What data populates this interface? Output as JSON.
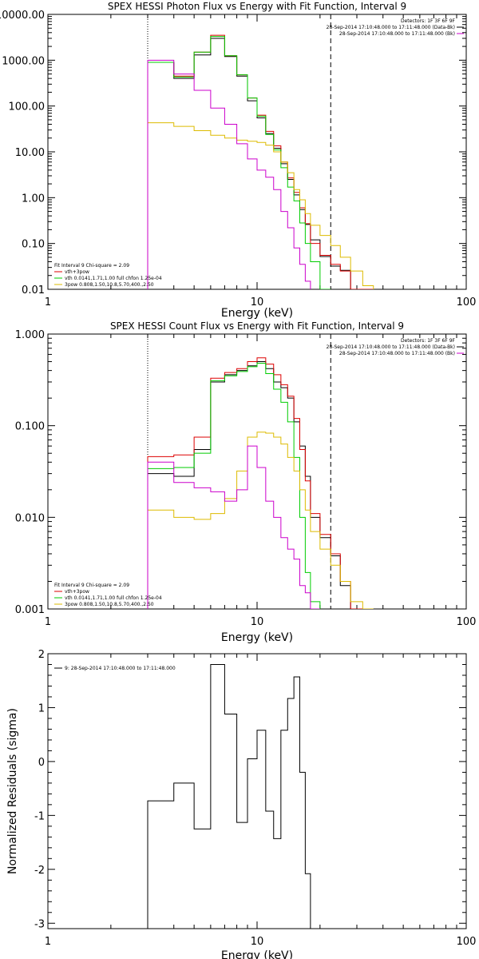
{
  "chart_data": [
    {
      "type": "line",
      "title": "SPEX HESSI Photon Flux vs Energy with Fit Function, Interval 9",
      "xlabel": "Energy (keV)",
      "ylabel": "",
      "xscale": "log",
      "yscale": "log",
      "xlim": [
        1,
        100
      ],
      "ylim": [
        0.01,
        10000
      ],
      "x_ticks": [
        1,
        10,
        100
      ],
      "x_tick_labels": [
        "1",
        "10",
        "100"
      ],
      "y_ticks": [
        0.01,
        0.1,
        1,
        10,
        100,
        1000,
        10000
      ],
      "y_tick_labels": [
        "0.01",
        "0.10",
        "1.00",
        "10.00",
        "100.00",
        "1000.00",
        "10000.00"
      ],
      "legend_right": {
        "placement": "top-right",
        "lines": [
          {
            "text": "Detectors: 1F 3F 6F 9F",
            "color": ""
          },
          {
            "text": "28-Sep-2014 17:10:48.000 to 17:11:48.000 (Data-Bk)",
            "color": "#000000"
          },
          {
            "text": "28-Sep-2014 17:10:48.000 to 17:11:48.000 (Bk)",
            "color": "#cc00cc"
          }
        ]
      },
      "legend_left": {
        "placement": "bottom-left",
        "lines": [
          {
            "text": "Fit Interval 9   Chi-square = 2.09",
            "color": ""
          },
          {
            "text": "vth+3pow",
            "color": "#dd0000"
          },
          {
            "text": "vth 0.0141,1.71,1.00  full chfon 1.25e-04",
            "color": "#00cc00"
          },
          {
            "text": "3pow 0.808,1.50,10.8,5.70,400.,2.50",
            "color": "#ddbb00"
          }
        ]
      },
      "vlines": [
        {
          "x": 3.0,
          "style": "dotted",
          "color": "#000000"
        },
        {
          "x": 22.5,
          "style": "dashed",
          "color": "#000000"
        }
      ],
      "edges": [
        3.0,
        4.0,
        5.0,
        6.0,
        7.0,
        8.0,
        9.0,
        10.0,
        11.0,
        12.0,
        13.0,
        14.0,
        15.0,
        16.0,
        17.0,
        18.0,
        20.0,
        22.5,
        25.0,
        28.0,
        32.0,
        36.0
      ],
      "series": [
        {
          "name": "Data-Bk",
          "color": "#000000",
          "values": [
            900,
            400,
            1300,
            3000,
            1200,
            450,
            130,
            55,
            25,
            12,
            5.5,
            2.5,
            1.15,
            0.55,
            0.26,
            0.12,
            0.052,
            0.032,
            0.026,
            0.006,
            0.006
          ]
        },
        {
          "name": "vth+3pow",
          "color": "#dd0000",
          "values": [
            900,
            450,
            1500,
            3500,
            1250,
            480,
            150,
            63,
            28,
            13.5,
            6.0,
            2.7,
            1.3,
            0.6,
            0.27,
            0.1,
            0.055,
            0.035,
            0.025,
            0.01,
            0.005
          ]
        },
        {
          "name": "vth",
          "color": "#00cc00",
          "values": [
            900,
            430,
            1500,
            3300,
            1250,
            480,
            150,
            60,
            24,
            11,
            4.5,
            1.7,
            0.85,
            0.28,
            0.1,
            0.04,
            0.01
          ]
        },
        {
          "name": "3pow",
          "color": "#ddbb00",
          "values": [
            43,
            36,
            29,
            23,
            20,
            18,
            17,
            16,
            14,
            10,
            6.0,
            3.5,
            1.5,
            0.9,
            0.45,
            0.25,
            0.15,
            0.09,
            0.05,
            0.025,
            0.012
          ]
        },
        {
          "name": "Bk",
          "color": "#cc00cc",
          "values": [
            1000,
            500,
            220,
            90,
            40,
            15,
            7.0,
            4.0,
            2.8,
            1.5,
            0.5,
            0.22,
            0.08,
            0.035,
            0.015
          ]
        }
      ]
    },
    {
      "type": "line",
      "title": "SPEX HESSI Count Flux vs Energy with Fit Function, Interval 9",
      "xlabel": "Energy (keV)",
      "ylabel": "",
      "xscale": "log",
      "yscale": "log",
      "xlim": [
        1,
        100
      ],
      "ylim": [
        0.001,
        1
      ],
      "x_ticks": [
        1,
        10,
        100
      ],
      "x_tick_labels": [
        "1",
        "10",
        "100"
      ],
      "y_ticks": [
        0.001,
        0.01,
        0.1,
        1
      ],
      "y_tick_labels": [
        "0.001",
        "0.010",
        "0.100",
        "1.000"
      ],
      "legend_right": {
        "placement": "top-right",
        "lines": [
          {
            "text": "Detectors: 1F 3F 6F 9F",
            "color": ""
          },
          {
            "text": "28-Sep-2014 17:10:48.000 to 17:11:48.000 (Data-Bk)",
            "color": "#000000"
          },
          {
            "text": "28-Sep-2014 17:10:48.000 to 17:11:48.000 (Bk)",
            "color": "#cc00cc"
          }
        ]
      },
      "legend_left": {
        "placement": "bottom-left",
        "lines": [
          {
            "text": "Fit Interval 9   Chi-square = 2.09",
            "color": ""
          },
          {
            "text": "vth+3pow",
            "color": "#dd0000"
          },
          {
            "text": "vth 0.0141,1.71,1.00  full chfon 1.25e-04",
            "color": "#00cc00"
          },
          {
            "text": "3pow 0.808,1.50,10.8,5.70,400.,2.50",
            "color": "#ddbb00"
          }
        ]
      },
      "vlines": [
        {
          "x": 3.0,
          "style": "dotted",
          "color": "#000000"
        },
        {
          "x": 22.5,
          "style": "dashed",
          "color": "#000000"
        }
      ],
      "edges": [
        3.0,
        4.0,
        5.0,
        6.0,
        7.0,
        8.0,
        9.0,
        10.0,
        11.0,
        12.0,
        13.0,
        14.0,
        15.0,
        16.0,
        17.0,
        18.0,
        20.0,
        22.5,
        25.0,
        28.0,
        32.0,
        36.0
      ],
      "series": [
        {
          "name": "Data-Bk",
          "color": "#000000",
          "values": [
            0.03,
            0.028,
            0.055,
            0.3,
            0.36,
            0.4,
            0.45,
            0.5,
            0.42,
            0.3,
            0.26,
            0.2,
            0.11,
            0.06,
            0.028,
            0.01,
            0.006,
            0.0038,
            0.0018,
            0.001
          ]
        },
        {
          "name": "vth+3pow",
          "color": "#dd0000",
          "values": [
            0.046,
            0.048,
            0.075,
            0.33,
            0.38,
            0.42,
            0.5,
            0.55,
            0.47,
            0.36,
            0.28,
            0.21,
            0.12,
            0.055,
            0.025,
            0.011,
            0.0065,
            0.004,
            0.002,
            0.001
          ]
        },
        {
          "name": "vth",
          "color": "#00cc00",
          "values": [
            0.034,
            0.035,
            0.05,
            0.31,
            0.35,
            0.39,
            0.44,
            0.48,
            0.37,
            0.25,
            0.18,
            0.11,
            0.045,
            0.01,
            0.0025,
            0.0012
          ]
        },
        {
          "name": "3pow",
          "color": "#ddbb00",
          "values": [
            0.012,
            0.01,
            0.0095,
            0.011,
            0.016,
            0.032,
            0.075,
            0.085,
            0.083,
            0.075,
            0.063,
            0.045,
            0.032,
            0.02,
            0.012,
            0.007,
            0.0045,
            0.003,
            0.002,
            0.0012,
            0.001
          ]
        },
        {
          "name": "Bk",
          "color": "#cc00cc",
          "values": [
            0.04,
            0.024,
            0.021,
            0.019,
            0.015,
            0.02,
            0.06,
            0.035,
            0.015,
            0.01,
            0.006,
            0.0045,
            0.0035,
            0.0018,
            0.0015,
            0.001
          ]
        }
      ]
    },
    {
      "type": "line",
      "title": "",
      "xlabel": "Energy (keV)",
      "ylabel": "Normalized Residuals (sigma)",
      "xscale": "log",
      "yscale": "linear",
      "xlim": [
        1,
        100
      ],
      "ylim": [
        -3.1,
        2.0
      ],
      "x_ticks": [
        1,
        10,
        100
      ],
      "x_tick_labels": [
        "1",
        "10",
        "100"
      ],
      "y_ticks": [
        -3,
        -2,
        -1,
        0,
        1,
        2
      ],
      "y_tick_labels": [
        "-3",
        "-2",
        "-1",
        "0",
        "1",
        "2"
      ],
      "legend_right": null,
      "legend_left": {
        "placement": "top-left",
        "lines": [
          {
            "text": "9: 28-Sep-2014 17:10:48.000 to 17:11:48.000",
            "color": "#000000"
          }
        ]
      },
      "vlines": [],
      "edges": [
        3.0,
        4.0,
        5.0,
        6.0,
        7.0,
        8.0,
        9.0,
        10.0,
        11.0,
        12.0,
        13.0,
        14.0,
        15.0,
        16.0,
        17.0,
        18.0,
        20.0,
        22.5
      ],
      "series": [
        {
          "name": "",
          "color": "#000000",
          "values": [
            -0.73,
            -0.4,
            -1.25,
            1.8,
            0.88,
            -1.13,
            0.05,
            0.58,
            -0.92,
            -1.43,
            0.58,
            1.17,
            1.57,
            -0.2,
            -2.08
          ]
        }
      ]
    }
  ]
}
